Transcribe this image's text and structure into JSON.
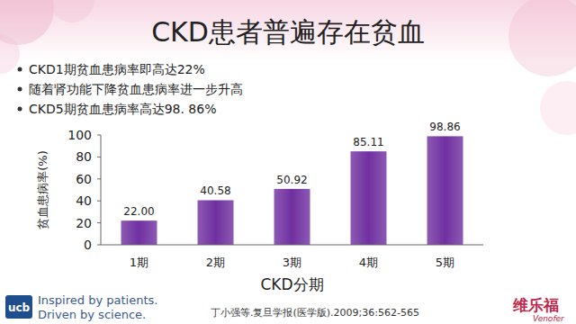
{
  "chart_data": {
    "type": "bar",
    "title": "CKD患者普遍存在贫血",
    "annotations": [
      "CKD1期贫血患病率即高达22%",
      "随着肾功能下降贫血患病率进一步升高",
      "CKD5期贫血患病率高达98. 86%"
    ],
    "x_label": "CKD分期",
    "y_label": "贫血患病率(%)",
    "categories": [
      "1期",
      "2期",
      "3期",
      "4期",
      "5期"
    ],
    "values": [
      22.0,
      40.58,
      50.92,
      85.11,
      98.86
    ],
    "value_labels": [
      "22.00",
      "40.58",
      "50.92",
      "85.11",
      "98.86"
    ],
    "color": "#7030a0",
    "ylim": [
      0,
      100
    ],
    "yticks": [
      0,
      20,
      40,
      60,
      80,
      100
    ],
    "grid": false,
    "data_labels": true
  },
  "footer": {
    "logo": "ucb",
    "tagline": [
      "Inspired by patients.",
      "Driven by science."
    ],
    "citation": "丁小强等.复旦学报(医学版).2009;36:562-565",
    "brand": "维乐福",
    "brand_en": "Venofer"
  }
}
